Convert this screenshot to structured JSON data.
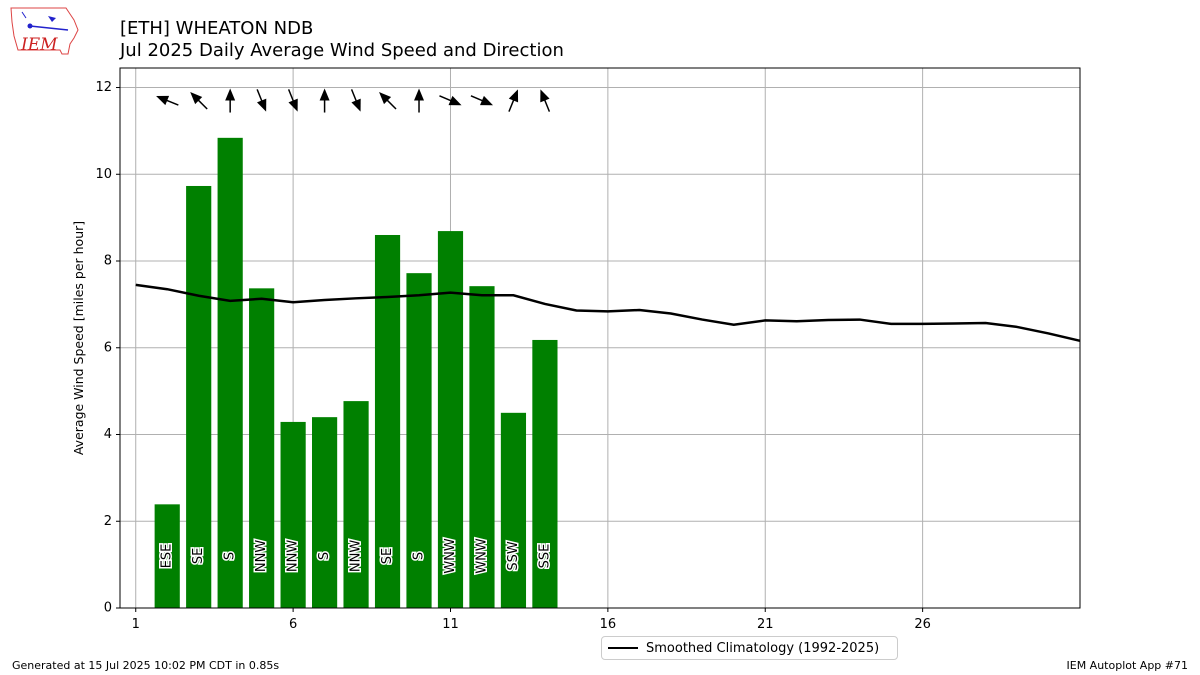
{
  "header": {
    "title": "[ETH] WHEATON NDB",
    "subtitle": "Jul 2025 Daily Average Wind Speed and Direction"
  },
  "logo": {
    "text": "IEM"
  },
  "footer": {
    "left": "Generated at 15 Jul 2025 10:02 PM CDT in 0.85s",
    "right": "IEM Autoplot App #71"
  },
  "colors": {
    "bar": "#008000",
    "line": "#000000",
    "grid": "#b0b0b0"
  },
  "chart_data": {
    "type": "bar",
    "ylabel": "Average Wind Speed [miles per hour]",
    "xlim": [
      0.5,
      31.0
    ],
    "ylim": [
      0,
      12.45
    ],
    "xticks": [
      1,
      6,
      11,
      16,
      21,
      26
    ],
    "yticks": [
      0,
      2,
      4,
      6,
      8,
      10,
      12
    ],
    "grid": true,
    "series": [
      {
        "type": "bar",
        "days": [
          2,
          3,
          4,
          5,
          6,
          7,
          8,
          9,
          10,
          11,
          12,
          13,
          14
        ],
        "values": [
          2.39,
          9.73,
          10.84,
          7.37,
          4.29,
          4.4,
          4.77,
          8.6,
          7.72,
          8.69,
          7.42,
          4.5,
          6.18
        ],
        "directions": [
          "ESE",
          "SE",
          "S",
          "NNW",
          "NNW",
          "S",
          "NNW",
          "SE",
          "S",
          "WNW",
          "WNW",
          "SSW",
          "SSE"
        ]
      },
      {
        "type": "line",
        "name": "Smoothed Climatology (1992-2025)",
        "x": [
          1,
          2,
          3,
          4,
          5,
          6,
          7,
          8,
          9,
          10,
          11,
          12,
          13,
          14,
          15,
          16,
          17,
          18,
          19,
          20,
          21,
          22,
          23,
          24,
          25,
          26,
          27,
          28,
          29,
          30,
          31
        ],
        "values": [
          7.45,
          7.35,
          7.2,
          7.08,
          7.13,
          7.05,
          7.1,
          7.14,
          7.17,
          7.21,
          7.27,
          7.21,
          7.21,
          7.01,
          6.86,
          6.84,
          6.87,
          6.79,
          6.65,
          6.53,
          6.63,
          6.61,
          6.64,
          6.65,
          6.55,
          6.55,
          6.56,
          6.57,
          6.48,
          6.33,
          6.16
        ]
      }
    ],
    "arrows_deg": [
      112,
      135,
      180,
      338,
      338,
      180,
      338,
      135,
      180,
      293,
      293,
      202,
      158
    ],
    "legend": "bottom-center"
  }
}
